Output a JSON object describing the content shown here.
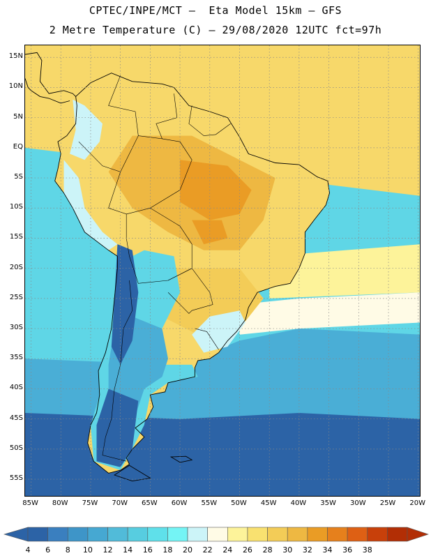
{
  "title": {
    "line1": "CPTEC/INPE/MCT –  Eta Model 15km – GFS",
    "line2": "2 Metre Temperature (C) – 29/08/2020 12UTC fct=97h"
  },
  "map": {
    "lat_labels": [
      "15N",
      "10N",
      "5N",
      "EQ",
      "5S",
      "10S",
      "15S",
      "20S",
      "25S",
      "30S",
      "35S",
      "40S",
      "45S",
      "50S",
      "55S"
    ],
    "lat_values": [
      15,
      10,
      5,
      0,
      -5,
      -10,
      -15,
      -20,
      -25,
      -30,
      -35,
      -40,
      -45,
      -50,
      -55
    ],
    "lon_labels": [
      "85W",
      "80W",
      "75W",
      "70W",
      "65W",
      "60W",
      "55W",
      "50W",
      "45W",
      "40W",
      "35W",
      "30W",
      "25W",
      "20W"
    ],
    "lon_values": [
      -85,
      -80,
      -75,
      -70,
      -65,
      -60,
      -55,
      -50,
      -45,
      -40,
      -35,
      -30,
      -25,
      -20
    ],
    "lat_range": [
      -58,
      17
    ],
    "lon_range": [
      -86,
      -19.5
    ],
    "grid": true,
    "grid_style": "dotted"
  },
  "colorbar": {
    "labels": [
      "4",
      "6",
      "8",
      "10",
      "12",
      "14",
      "16",
      "18",
      "20",
      "22",
      "24",
      "26",
      "28",
      "30",
      "32",
      "34",
      "36",
      "38"
    ],
    "colors": [
      "#2c63a6",
      "#3a7fbf",
      "#3e95c8",
      "#46a8d2",
      "#51bbd9",
      "#57cde0",
      "#5fe0ea",
      "#74f4f5",
      "#ccf4f8",
      "#fffbe6",
      "#fdf39a",
      "#f9e170",
      "#f3cc57",
      "#eeb842",
      "#ea9c25",
      "#e6801c",
      "#de6014",
      "#c8400a",
      "#b22e05"
    ],
    "arrow_left_color": "#2c63a6",
    "arrow_right_color": "#b22e05"
  },
  "field_colors": {
    "ocean_cold": "#2c63a6",
    "ocean_mid": "#4aaed6",
    "ocean_light": "#5fd6e6",
    "ocean_warm_band": "#fffbe6",
    "tropics": "#f7d86a",
    "tropics_hot": "#eeb842",
    "land_hot": "#ea9c25",
    "andes": "#ccf4f8"
  }
}
